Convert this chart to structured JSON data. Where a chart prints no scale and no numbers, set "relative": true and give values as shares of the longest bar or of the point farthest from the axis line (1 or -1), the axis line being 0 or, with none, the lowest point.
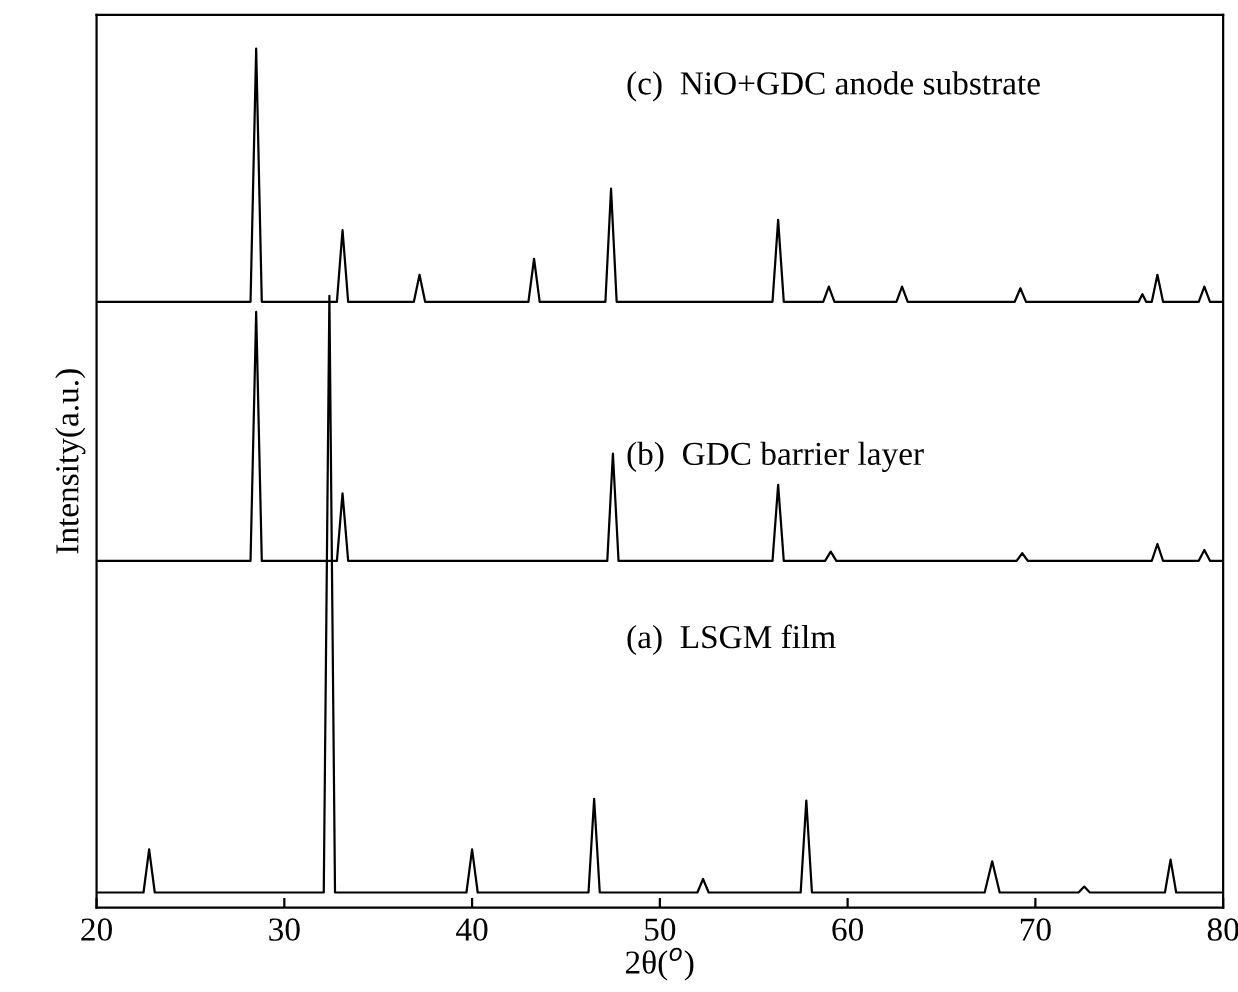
{
  "chart_data": {
    "type": "line",
    "relative": true,
    "xlabel": "2θ($^{o}$)",
    "ylabel": "Intensity(a.u.)",
    "xlim": [
      20,
      80
    ],
    "xticks": [
      20,
      30,
      40,
      50,
      60,
      70,
      80
    ],
    "grid": false,
    "legend": false,
    "marker": "none",
    "line_style": "solid",
    "series": [
      {
        "color": "#000000",
        "x": [
          20,
          22.5,
          22.8,
          23.1,
          32.1,
          32.4,
          32.7,
          39.7,
          40.0,
          40.3,
          46.2,
          46.5,
          46.8,
          52.0,
          52.3,
          52.6,
          57.5,
          57.8,
          58.1,
          67.3,
          67.7,
          68.1,
          72.3,
          72.6,
          72.9,
          76.9,
          77.2,
          77.5,
          80
        ],
        "values": [
          0,
          0,
          0.051,
          0,
          0,
          0.707,
          0,
          0,
          0.051,
          0,
          0,
          0.111,
          0,
          0,
          0.016,
          0,
          0,
          0.109,
          0,
          0,
          0.037,
          0,
          0,
          0.007,
          0,
          0,
          0.039,
          0,
          0
        ]
      },
      {
        "color": "#000000",
        "x": [
          20,
          28.2,
          28.5,
          28.8,
          32.8,
          33.1,
          33.4,
          47.2,
          47.5,
          47.8,
          56.0,
          56.3,
          56.6,
          58.8,
          59.1,
          59.4,
          69.0,
          69.3,
          69.6,
          76.2,
          76.5,
          76.8,
          78.7,
          79.0,
          79.3,
          80
        ],
        "values": [
          0.393,
          0.393,
          0.688,
          0.393,
          0.393,
          0.473,
          0.393,
          0.393,
          0.52,
          0.393,
          0.393,
          0.483,
          0.393,
          0.393,
          0.404,
          0.393,
          0.393,
          0.402,
          0.393,
          0.393,
          0.413,
          0.393,
          0.393,
          0.406,
          0.393,
          0.393
        ]
      },
      {
        "color": "#000000",
        "x": [
          20,
          28.2,
          28.5,
          28.8,
          32.8,
          33.1,
          33.4,
          36.9,
          37.2,
          37.5,
          43.0,
          43.3,
          43.6,
          47.1,
          47.4,
          47.7,
          56.0,
          56.3,
          56.6,
          58.7,
          59.0,
          59.3,
          62.6,
          62.9,
          63.2,
          68.9,
          69.2,
          69.5,
          75.5,
          75.7,
          75.9,
          76.2,
          76.5,
          76.8,
          78.7,
          79.0,
          79.3,
          80
        ],
        "values": [
          0.7,
          0.7,
          1.0,
          0.7,
          0.7,
          0.785,
          0.7,
          0.7,
          0.732,
          0.7,
          0.7,
          0.751,
          0.7,
          0.7,
          0.834,
          0.7,
          0.7,
          0.797,
          0.7,
          0.7,
          0.718,
          0.7,
          0.7,
          0.718,
          0.7,
          0.7,
          0.716,
          0.7,
          0.7,
          0.709,
          0.7,
          0.7,
          0.732,
          0.7,
          0.7,
          0.718,
          0.7,
          0.7
        ]
      }
    ],
    "annotations": [
      "(a)  LSGM film",
      "(b)  GDC barrier layer",
      "(c)  NiO+GDC anode substrate"
    ]
  }
}
